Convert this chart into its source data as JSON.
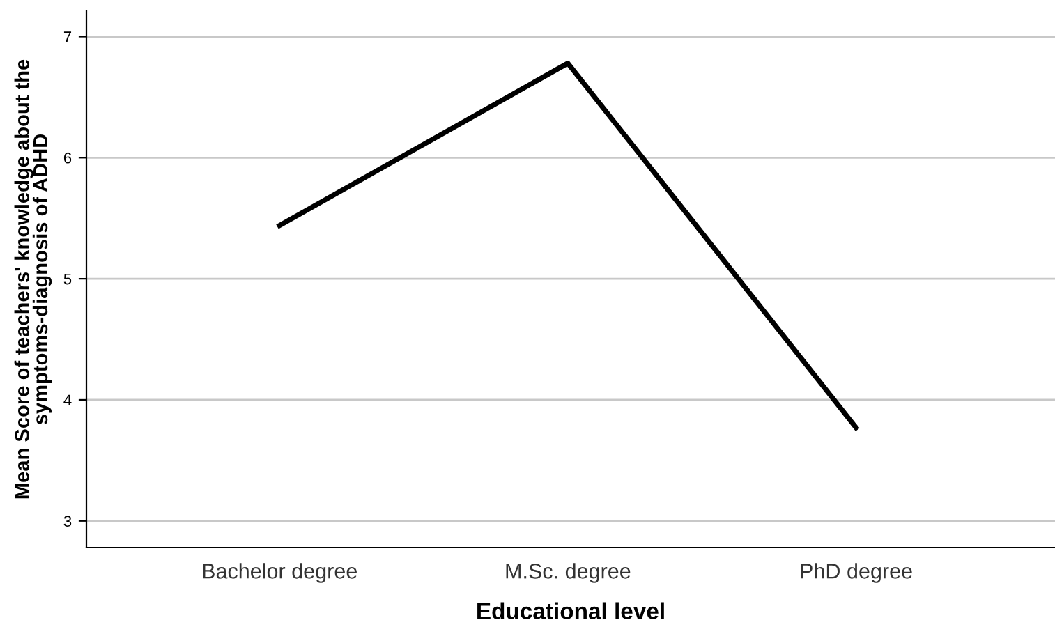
{
  "chart_data": {
    "type": "line",
    "xlabel": "Educational level",
    "ylabel": "Mean Score of teachers' knowledge about the\nsymptoms-diagnosis of ADHD",
    "categories": [
      "Bachelor degree",
      "M.Sc. degree",
      "PhD degree"
    ],
    "values": [
      5.44,
      6.78,
      3.77
    ],
    "color": "#000000",
    "ylim": [
      2.78,
      7.21
    ],
    "yticks": [
      3,
      4,
      5,
      6,
      7
    ],
    "grid": "y",
    "marker": "none",
    "line_style": "solid",
    "legend": false
  }
}
